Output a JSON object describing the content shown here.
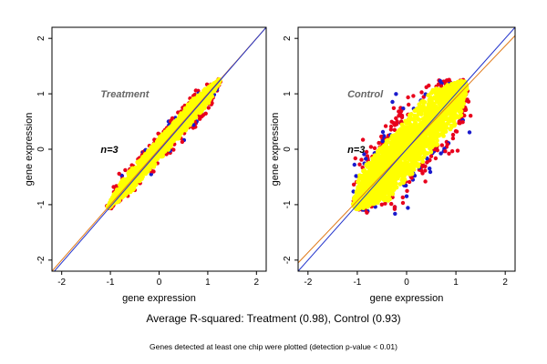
{
  "colors": {
    "background": "#ffffff",
    "fit_line_orange": "#e07a1a",
    "fit_line_blue": "#2233cc",
    "points_yellow": "#ffff00",
    "points_red": "#e8001c",
    "points_blue": "#1a1acc",
    "panel_label": "#666666"
  },
  "footer": {
    "summary": "Average R-squared: Treatment (0.98), Control (0.93)",
    "note": "Genes detected at least one chip were plotted (detection p-value < 0.01)"
  },
  "chart_data": [
    {
      "type": "scatter",
      "panel_label": "Treatment",
      "count_label": "n=3",
      "xlabel": "gene expression",
      "ylabel": "gene expression",
      "xlim": [
        -2.2,
        2.2
      ],
      "ylim": [
        -2.2,
        2.2
      ],
      "xticks": [
        "-2",
        "-1",
        "0",
        "1",
        "2"
      ],
      "yticks": [
        "-2",
        "-1",
        "0",
        "1",
        "2"
      ],
      "grid": false,
      "r_squared": 0.98,
      "point_cloud": {
        "x_range": [
          -1.05,
          1.25
        ],
        "y_range": [
          -1.05,
          1.25
        ],
        "spread": 0.12,
        "outlier_colors": [
          "red",
          "blue"
        ]
      },
      "lines": [
        {
          "color": "orange",
          "x": [
            -2.2,
            2.2
          ],
          "y": [
            -2.2,
            2.2
          ]
        },
        {
          "color": "blue",
          "x": [
            -2.2,
            2.2
          ],
          "y": [
            -2.25,
            2.2
          ]
        }
      ]
    },
    {
      "type": "scatter",
      "panel_label": "Control",
      "count_label": "n=3",
      "xlabel": "gene expression",
      "ylabel": "gene expression",
      "xlim": [
        -2.2,
        2.2
      ],
      "ylim": [
        -2.2,
        2.2
      ],
      "xticks": [
        "-2",
        "-1",
        "0",
        "1",
        "2"
      ],
      "yticks": [
        "-2",
        "-1",
        "0",
        "1",
        "2"
      ],
      "grid": false,
      "r_squared": 0.93,
      "point_cloud": {
        "x_range": [
          -1.05,
          1.2
        ],
        "y_range": [
          -1.05,
          1.2
        ],
        "spread": 0.32,
        "outlier_colors": [
          "red",
          "blue"
        ]
      },
      "lines": [
        {
          "color": "orange",
          "x": [
            -2.2,
            2.2
          ],
          "y": [
            -2.05,
            2.05
          ]
        },
        {
          "color": "blue",
          "x": [
            -2.2,
            2.2
          ],
          "y": [
            -2.2,
            2.2
          ]
        }
      ]
    }
  ]
}
